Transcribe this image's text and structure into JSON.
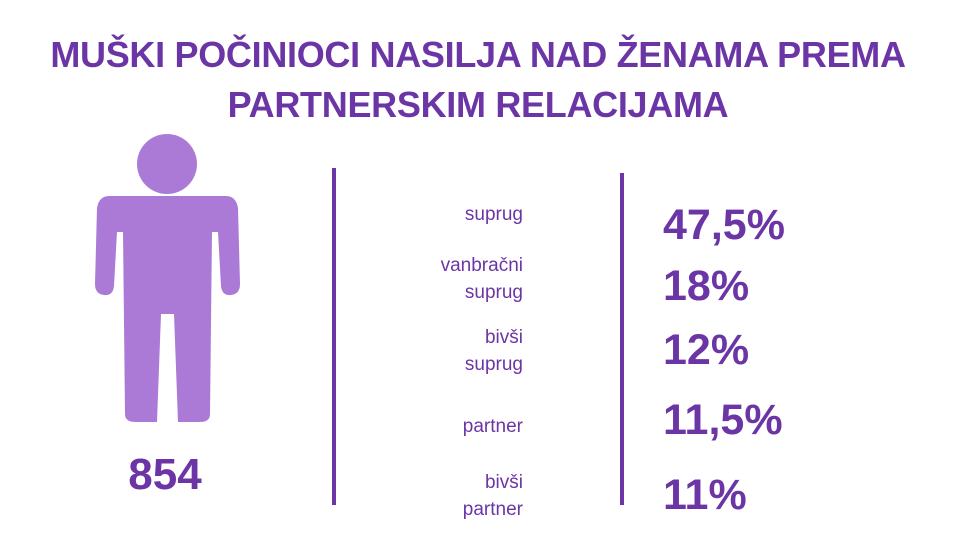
{
  "title_lines": [
    "MUŠKI POČINIOCI NASILJA NAD ŽENAMA PREMA",
    "PARTNERSKIM RELACIJAMA"
  ],
  "total_count": "854",
  "icon": "person-icon",
  "colors": {
    "accent": "#6b35a6",
    "figure": "#ab7ad7"
  },
  "chart_data": {
    "type": "table",
    "title": "MUŠKI POČINIOCI NASILJA NAD ŽENAMA PREMA PARTNERSKIM RELACIJAMA",
    "total": 854,
    "categories": [
      "suprug",
      "vanbračni suprug",
      "bivši suprug",
      "partner",
      "bivši partner"
    ],
    "category_lines": [
      [
        "suprug"
      ],
      [
        "vanbračni",
        "suprug"
      ],
      [
        "bivši",
        "suprug"
      ],
      [
        "partner"
      ],
      [
        "bivši",
        "partner"
      ]
    ],
    "values": [
      47.5,
      18,
      12,
      11.5,
      11
    ],
    "value_labels": [
      "47,5%",
      "18%",
      "12%",
      "11,5%",
      "11%"
    ],
    "unit": "%"
  }
}
